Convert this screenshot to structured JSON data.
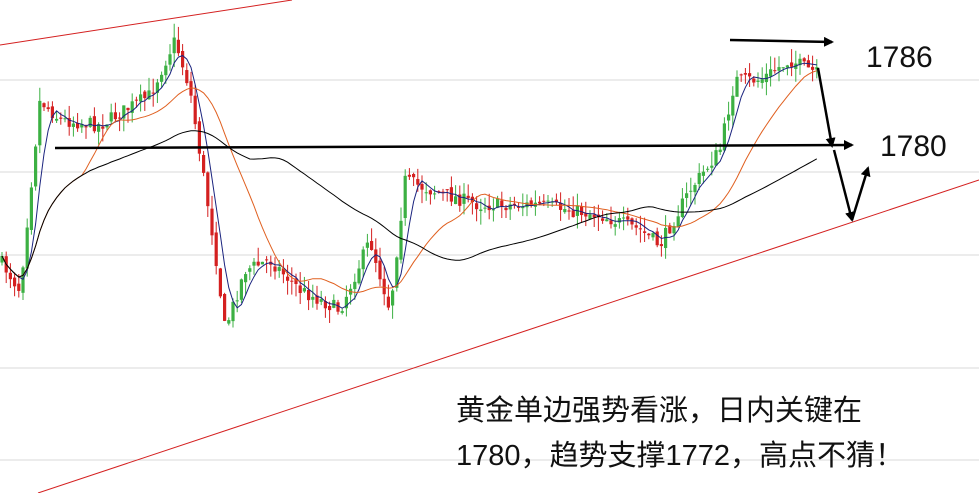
{
  "levels": {
    "high": "1786",
    "key": "1780"
  },
  "note": {
    "line1": "黄金单边强势看涨，日内关键在",
    "line2": "1780，趋势支撑1772，高点不猜！"
  }
}
